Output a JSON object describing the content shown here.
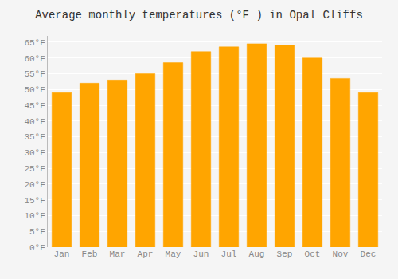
{
  "chart_data": {
    "type": "bar",
    "title": "Average monthly temperatures (°F ) in Opal Cliffs",
    "categories": [
      "Jan",
      "Feb",
      "Mar",
      "Apr",
      "May",
      "Jun",
      "Jul",
      "Aug",
      "Sep",
      "Oct",
      "Nov",
      "Dec"
    ],
    "values": [
      49,
      52,
      53,
      55,
      58.5,
      62,
      63.5,
      64.5,
      64,
      60,
      53.5,
      49
    ],
    "color": "#FFA500",
    "ylim": [
      0,
      67
    ],
    "yticks": [
      {
        "value": 0,
        "label": "0°F"
      },
      {
        "value": 5,
        "label": "5°F"
      },
      {
        "value": 10,
        "label": "10°F"
      },
      {
        "value": 15,
        "label": "15°F"
      },
      {
        "value": 20,
        "label": "20°F"
      },
      {
        "value": 25,
        "label": "25°F"
      },
      {
        "value": 30,
        "label": "30°F"
      },
      {
        "value": 35,
        "label": "35°F"
      },
      {
        "value": 40,
        "label": "40°F"
      },
      {
        "value": 45,
        "label": "45°F"
      },
      {
        "value": 50,
        "label": "50°F"
      },
      {
        "value": 55,
        "label": "55°F"
      },
      {
        "value": 60,
        "label": "60°F"
      },
      {
        "value": 65,
        "label": "65°F"
      }
    ],
    "grid": true
  }
}
